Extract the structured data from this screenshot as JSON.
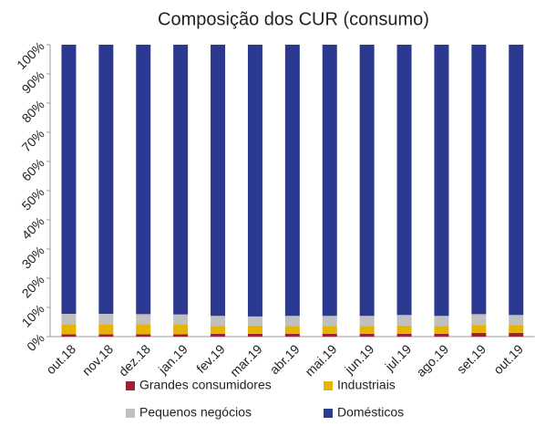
{
  "chart_data": {
    "type": "stacked_bar",
    "title": "Composição dos CUR (consumo)",
    "categories": [
      "out.18",
      "nov.18",
      "dez.18",
      "jan.19",
      "fev.19",
      "mar.19",
      "abr.19",
      "mai.19",
      "jun.19",
      "jul.19",
      "ago.19",
      "set.19",
      "out.19"
    ],
    "series": [
      {
        "name": "Grandes consumidores",
        "color": "#9b2335",
        "values": [
          0.8,
          0.8,
          0.8,
          0.8,
          1.0,
          1.0,
          1.0,
          1.0,
          1.0,
          1.0,
          1.0,
          1.3,
          1.3
        ]
      },
      {
        "name": "Industriais",
        "color": "#e6b400",
        "values": [
          3.5,
          3.4,
          3.4,
          3.5,
          2.7,
          2.8,
          2.7,
          2.7,
          2.7,
          2.8,
          2.7,
          2.7,
          2.7
        ]
      },
      {
        "name": "Pequenos negócios",
        "color": "#c0c0c0",
        "values": [
          3.5,
          3.6,
          3.5,
          3.3,
          3.4,
          3.1,
          3.4,
          3.4,
          3.4,
          3.6,
          3.4,
          3.7,
          3.4
        ]
      },
      {
        "name": "Domésticos",
        "color": "#2b3990",
        "values": [
          92.2,
          92.2,
          92.3,
          92.4,
          92.9,
          93.1,
          92.9,
          92.9,
          92.9,
          92.6,
          92.9,
          92.3,
          92.6
        ]
      }
    ],
    "ylim": [
      0,
      100
    ],
    "yticks": [
      {
        "value": 0,
        "label": "0%"
      },
      {
        "value": 10,
        "label": "10%"
      },
      {
        "value": 20,
        "label": "20%"
      },
      {
        "value": 30,
        "label": "30%"
      },
      {
        "value": 40,
        "label": "40%"
      },
      {
        "value": 50,
        "label": "50%"
      },
      {
        "value": 60,
        "label": "60%"
      },
      {
        "value": 70,
        "label": "70%"
      },
      {
        "value": 80,
        "label": "80%"
      },
      {
        "value": 90,
        "label": "90%"
      },
      {
        "value": 100,
        "label": "100%"
      }
    ],
    "legend": "bottom",
    "grid": false
  }
}
